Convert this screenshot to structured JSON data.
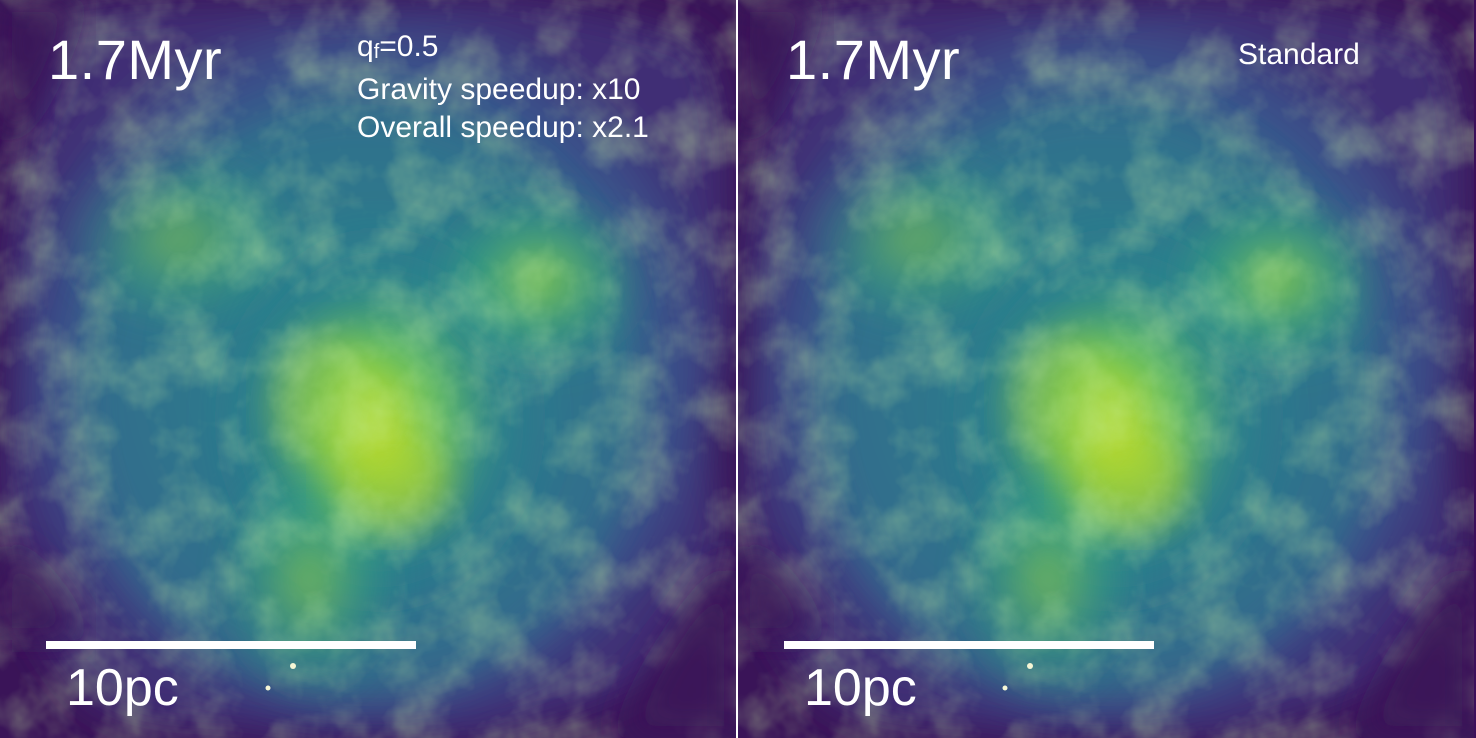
{
  "panels": [
    {
      "time_label": "1.7Myr",
      "info_lines": [
        "q",
        "f",
        "=0.5",
        "Gravity speedup: x10",
        "Overall speedup: x2.1"
      ],
      "scale_label": "10pc"
    },
    {
      "time_label": "1.7Myr",
      "info_lines": [
        "Standard"
      ],
      "scale_label": "10pc"
    }
  ],
  "colors": {
    "background": "#3b0f5a",
    "low_density": "#3e4a89",
    "mid_density": "#26828e",
    "high_density": "#6ece58",
    "peak_density": "#d8e219",
    "text": "#ffffff"
  }
}
